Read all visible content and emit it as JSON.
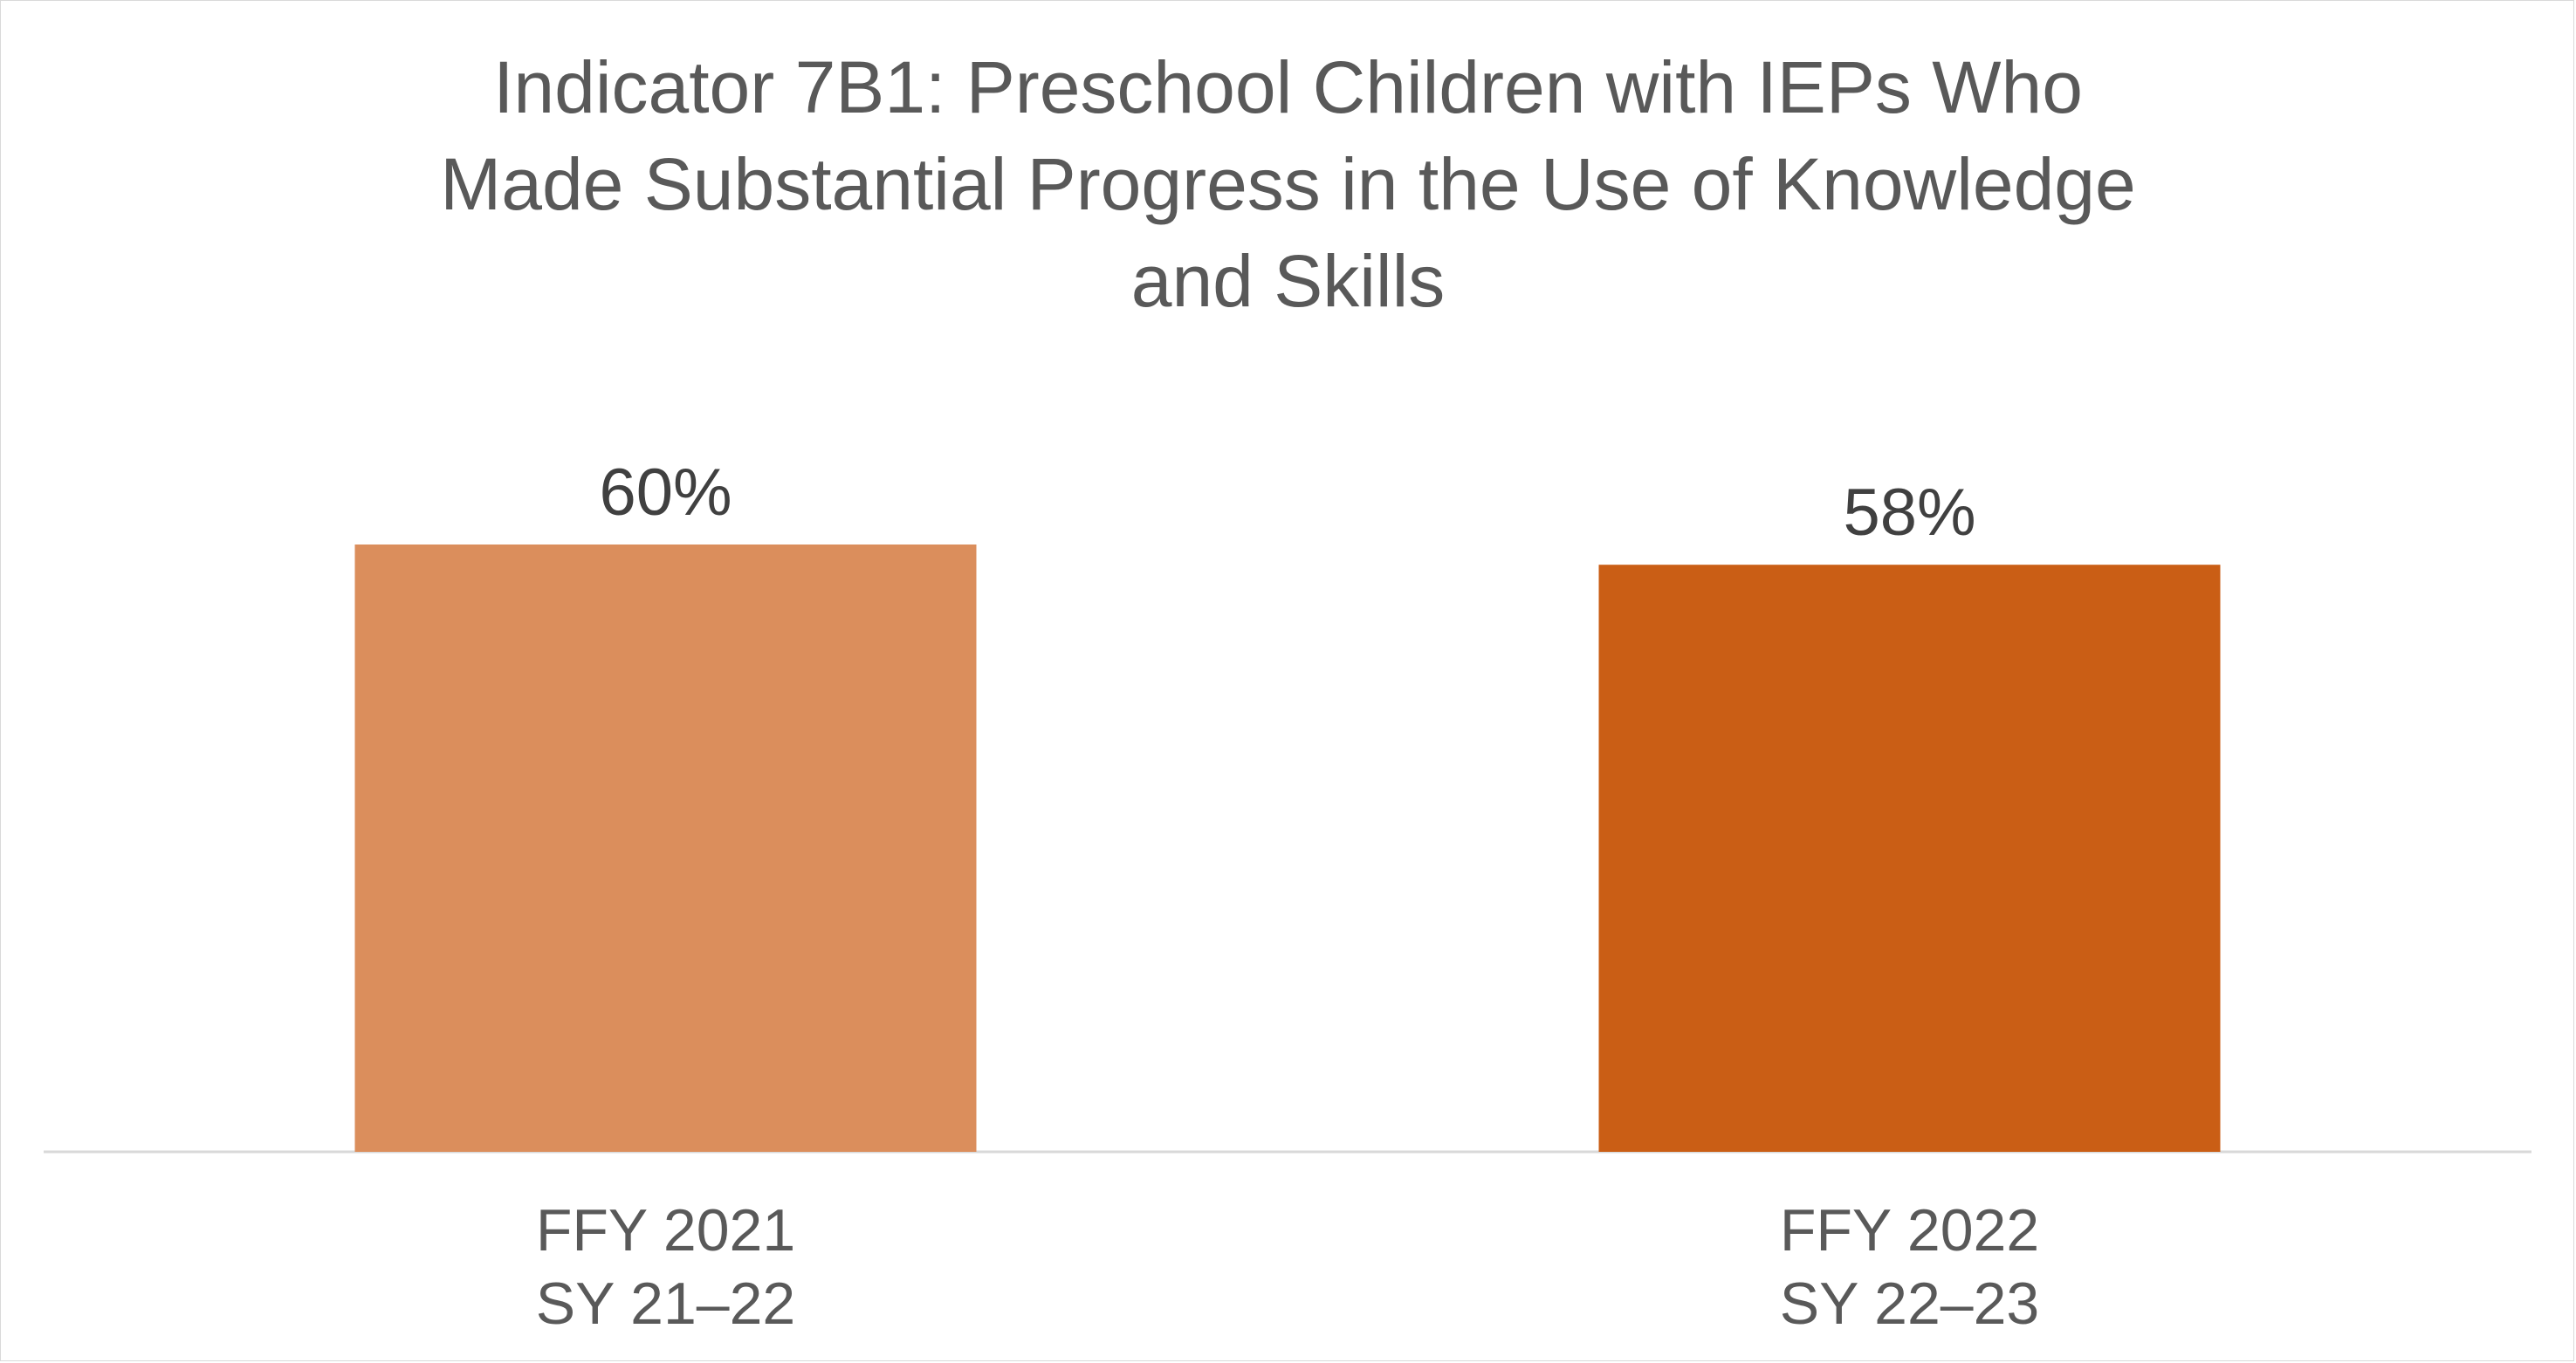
{
  "chart_data": {
    "type": "bar",
    "title_lines": [
      "Indicator 7B1: Preschool Children with IEPs Who",
      "Made Substantial Progress in the Use of Knowledge",
      "and Skills"
    ],
    "categories": [
      [
        "FFY 2021",
        "SY 21–22"
      ],
      [
        "FFY 2022",
        "SY 22–23"
      ]
    ],
    "values": [
      60,
      58
    ],
    "value_labels": [
      "60%",
      "58%"
    ],
    "colors": [
      "#db8e5c",
      "#ca5e15"
    ],
    "xlabel": "",
    "ylabel": "",
    "ylim": [
      0,
      100
    ],
    "grid": false,
    "legend": "none"
  }
}
